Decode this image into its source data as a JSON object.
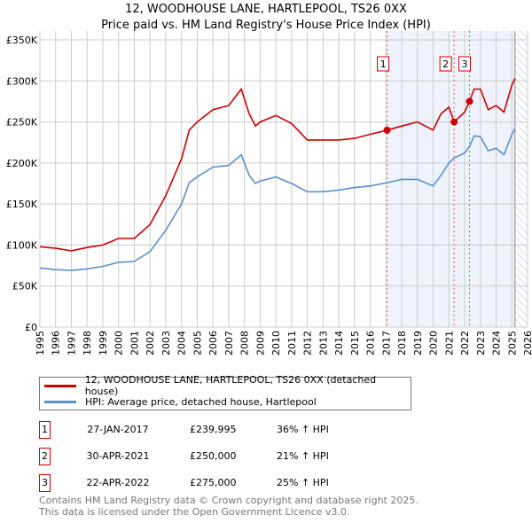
{
  "title_line1": "12, WOODHOUSE LANE, HARTLEPOOL, TS26 0XX",
  "title_line2": "Price paid vs. HM Land Registry's House Price Index (HPI)",
  "chart_data": {
    "type": "line",
    "title": "12, WOODHOUSE LANE, HARTLEPOOL, TS26 0XX — Price paid vs. HM Land Registry's House Price Index (HPI)",
    "xlim": [
      1995,
      2026
    ],
    "ylim": [
      0,
      350000
    ],
    "x_ticks": [
      "1995",
      "1996",
      "1997",
      "1998",
      "1999",
      "2000",
      "2001",
      "2002",
      "2003",
      "2004",
      "2005",
      "2006",
      "2007",
      "2008",
      "2009",
      "2010",
      "2011",
      "2012",
      "2013",
      "2014",
      "2015",
      "2016",
      "2017",
      "2018",
      "2019",
      "2020",
      "2021",
      "2022",
      "2023",
      "2024",
      "2025",
      "2026"
    ],
    "y_ticks": [
      {
        "v": 0,
        "label": "£0"
      },
      {
        "v": 50000,
        "label": "£50K"
      },
      {
        "v": 100000,
        "label": "£100K"
      },
      {
        "v": 150000,
        "label": "£150K"
      },
      {
        "v": 200000,
        "label": "£200K"
      },
      {
        "v": 250000,
        "label": "£250K"
      },
      {
        "v": 300000,
        "label": "£300K"
      },
      {
        "v": 350000,
        "label": "£350K"
      }
    ],
    "grid": true,
    "shaded_from": 2017.07,
    "hatched_from": 2025.2,
    "series": [
      {
        "name": "12, WOODHOUSE LANE, HARTLEPOOL, TS26 0XX (detached house)",
        "color": "#cc0000",
        "x": [
          1995,
          1996,
          1997,
          1998,
          1999,
          2000,
          2001,
          2002,
          2003,
          2004,
          2004.5,
          2005,
          2006,
          2007,
          2007.8,
          2008.3,
          2008.7,
          2009,
          2010,
          2011,
          2012,
          2013,
          2014,
          2015,
          2016,
          2017.07,
          2018,
          2019,
          2020,
          2020.5,
          2021,
          2021.33,
          2022,
          2022.31,
          2022.6,
          2023,
          2023.5,
          2024,
          2024.5,
          2025,
          2025.2
        ],
        "values": [
          98000,
          96000,
          93000,
          97000,
          100000,
          108000,
          108000,
          125000,
          160000,
          205000,
          240000,
          250000,
          265000,
          270000,
          290000,
          260000,
          245000,
          250000,
          258000,
          248000,
          228000,
          228000,
          228000,
          230000,
          235000,
          239995,
          245000,
          250000,
          240000,
          260000,
          268000,
          250000,
          262000,
          275000,
          290000,
          290000,
          265000,
          270000,
          262000,
          295000,
          303000
        ]
      },
      {
        "name": "HPI: Average price, detached house, Hartlepool",
        "color": "#5b8fd1",
        "x": [
          1995,
          1996,
          1997,
          1998,
          1999,
          2000,
          2001,
          2002,
          2003,
          2004,
          2004.5,
          2005,
          2006,
          2007,
          2007.8,
          2008.3,
          2008.7,
          2009,
          2010,
          2011,
          2012,
          2013,
          2014,
          2015,
          2016,
          2017.07,
          2018,
          2019,
          2020,
          2020.5,
          2021,
          2021.33,
          2022,
          2022.31,
          2022.6,
          2023,
          2023.5,
          2024,
          2024.5,
          2025,
          2025.2
        ],
        "values": [
          72000,
          70000,
          69000,
          71000,
          74000,
          79000,
          80000,
          92000,
          118000,
          150000,
          176000,
          183000,
          195000,
          197000,
          210000,
          185000,
          175000,
          178000,
          183000,
          175000,
          165000,
          165000,
          167000,
          170000,
          172000,
          176000,
          180000,
          180000,
          172000,
          185000,
          200000,
          206000,
          212000,
          220000,
          233000,
          232000,
          215000,
          218000,
          210000,
          235000,
          242000
        ]
      }
    ],
    "sales": [
      {
        "id": "1",
        "x": 2017.07,
        "value": 239995
      },
      {
        "id": "2",
        "x": 2021.33,
        "value": 250000
      },
      {
        "id": "3",
        "x": 2022.31,
        "value": 275000
      }
    ]
  },
  "legend": {
    "property": "12, WOODHOUSE LANE, HARTLEPOOL, TS26 0XX (detached house)",
    "hpi": "HPI: Average price, detached house, Hartlepool"
  },
  "transactions": [
    {
      "id": "1",
      "date": "27-JAN-2017",
      "price": "£239,995",
      "hpi": "36% ↑ HPI"
    },
    {
      "id": "2",
      "date": "30-APR-2021",
      "price": "£250,000",
      "hpi": "21% ↑ HPI"
    },
    {
      "id": "3",
      "date": "22-APR-2022",
      "price": "£275,000",
      "hpi": "25% ↑ HPI"
    }
  ],
  "footer_line1": "Contains HM Land Registry data © Crown copyright and database right 2025.",
  "footer_line2": "This data is licensed under the Open Government Licence v3.0."
}
